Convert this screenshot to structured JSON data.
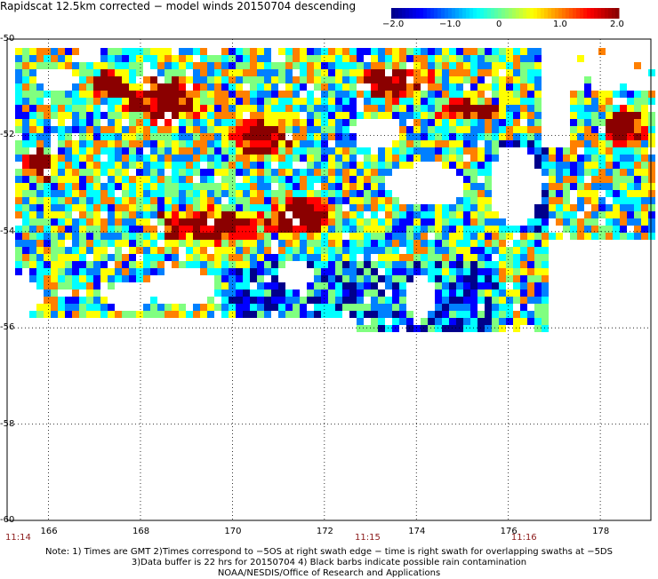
{
  "title": "Rapidscat 12.5km corrected − model winds 20150704 descending",
  "colorbar": {
    "ticks": [
      "−2.0",
      "−1.0",
      "0",
      "1.0",
      "2.0"
    ],
    "tick_values": [
      -2.0,
      -1.0,
      0,
      1.0,
      2.0
    ],
    "colors": [
      "#00008b",
      "#0000ff",
      "#0080ff",
      "#00ffff",
      "#80ff80",
      "#ffff00",
      "#ff8000",
      "#ff0000",
      "#8b0000"
    ]
  },
  "map": {
    "lat_labels": [
      "-50",
      "-52",
      "-54",
      "-56",
      "-58",
      "-60"
    ],
    "lat_values": [
      -50,
      -52,
      -54,
      -56,
      -58,
      -60
    ],
    "lon_labels": [
      "166",
      "168",
      "170",
      "172",
      "174",
      "176",
      "178"
    ],
    "lon_values": [
      166,
      168,
      170,
      172,
      174,
      176,
      178
    ],
    "lon_range": [
      165.1,
      179.1
    ],
    "lat_range": [
      -50,
      -60
    ],
    "times": [
      {
        "label": "11:14",
        "lon": 165.1
      },
      {
        "label": "11:15",
        "lon": 172.7
      },
      {
        "label": "11:16",
        "lon": 176.1
      }
    ]
  },
  "notes": [
    "Note: 1) Times are GMT 2)Times correspond to −5OS at right swath edge − time is right swath for overlapping swaths at −5DS",
    "3)Data buffer is 22 hrs for 20150704 4) Black barbs indicate possible rain contamination",
    "NOAA/NESDIS/Office of Research and Applications"
  ]
}
